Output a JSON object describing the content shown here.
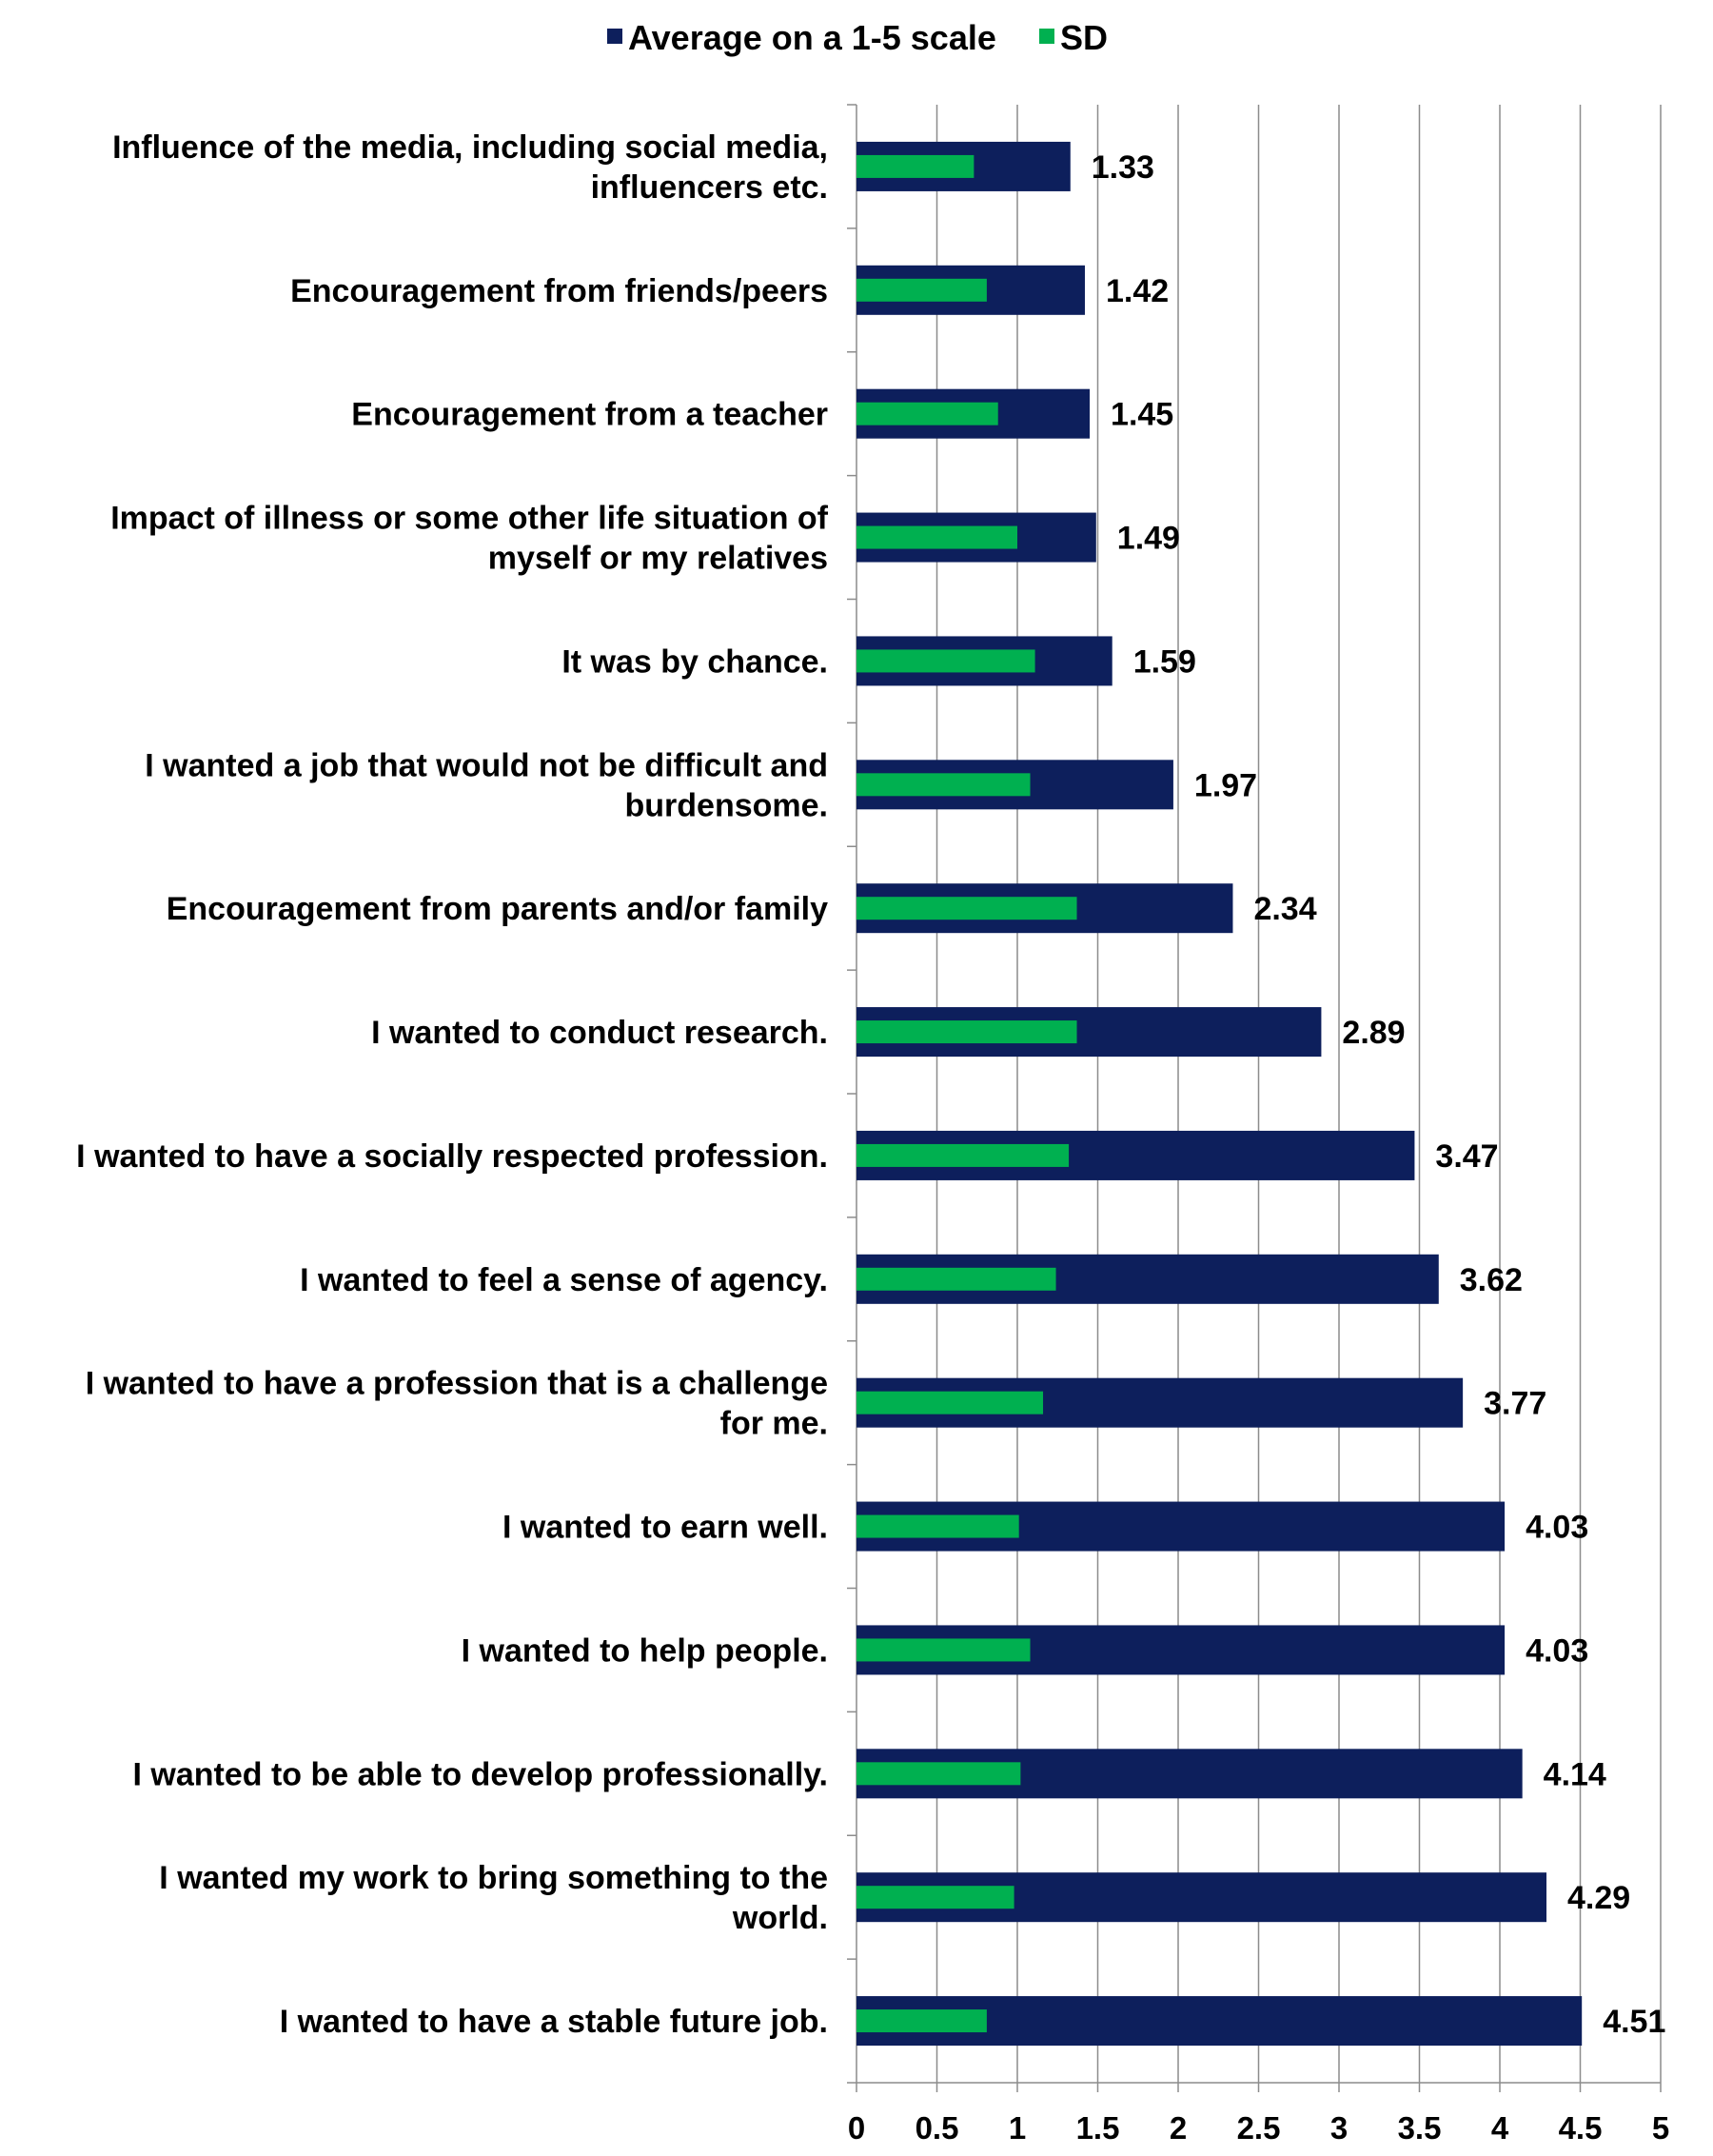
{
  "chart_data": {
    "type": "bar",
    "orientation": "horizontal",
    "title": "",
    "xlabel": "",
    "ylabel": "",
    "xlim": [
      0,
      5
    ],
    "xticks": [
      "0",
      "0.5",
      "1",
      "1.5",
      "2",
      "2.5",
      "3",
      "3.5",
      "4",
      "4.5",
      "5"
    ],
    "grid": true,
    "legend_position": "top",
    "categories": [
      [
        "Influence of the media, including social media,",
        "influencers etc."
      ],
      [
        "Encouragement from friends/peers"
      ],
      [
        "Encouragement from a teacher"
      ],
      [
        "Impact of illness or some other life situation of",
        "myself or my relatives"
      ],
      [
        "It was by chance."
      ],
      [
        "I wanted a job that would not be difficult and",
        "burdensome."
      ],
      [
        "Encouragement from parents and/or family"
      ],
      [
        "I wanted to conduct research."
      ],
      [
        "I wanted to have a socially respected profession."
      ],
      [
        "I wanted to feel a sense of agency."
      ],
      [
        "I wanted to have a profession that is a challenge",
        "for me."
      ],
      [
        "I wanted to earn well."
      ],
      [
        "I wanted to help people."
      ],
      [
        "I wanted to be able to develop professionally."
      ],
      [
        "I wanted my work to bring something to the",
        "world."
      ],
      [
        "I wanted to have a stable future job."
      ]
    ],
    "series": [
      {
        "name": "Average on a 1-5 scale",
        "color": "#0d1f5c",
        "values": [
          1.33,
          1.42,
          1.45,
          1.49,
          1.59,
          1.97,
          2.34,
          2.89,
          3.47,
          3.62,
          3.77,
          4.03,
          4.03,
          4.14,
          4.29,
          4.51
        ],
        "labels": [
          "1.33",
          "1.42",
          "1.45",
          "1.49",
          "1.59",
          "1.97",
          "2.34",
          "2.89",
          "3.47",
          "3.62",
          "3.77",
          "4.03",
          "4.03",
          "4.14",
          "4.29",
          "4.51"
        ]
      },
      {
        "name": "SD",
        "color": "#00b050",
        "values": [
          0.73,
          0.81,
          0.88,
          1.0,
          1.11,
          1.08,
          1.37,
          1.37,
          1.32,
          1.24,
          1.16,
          1.01,
          1.08,
          1.02,
          0.98,
          0.81
        ]
      }
    ]
  }
}
